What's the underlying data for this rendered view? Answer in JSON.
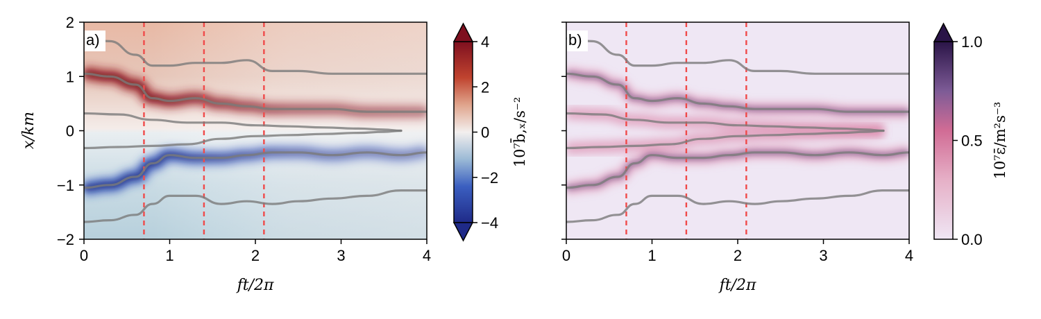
{
  "chart_data": [
    {
      "type": "heatmap",
      "panel_label": "a)",
      "xlabel": "ft/2π",
      "ylabel": "x/km",
      "xlim": [
        0,
        4
      ],
      "ylim": [
        -2,
        2
      ],
      "x_ticks": [
        "0",
        "1",
        "2",
        "3",
        "4"
      ],
      "y_ticks": [
        "−2",
        "−1",
        "0",
        "1",
        "2"
      ],
      "colorbar": {
        "label": "10⁷b̄,ₓ/s⁻²",
        "range": [
          -4,
          4
        ],
        "ticks": [
          "−4",
          "−2",
          "0",
          "2",
          "4"
        ],
        "colormap": "diverging blue-white-red",
        "colors": {
          "low": "#1f2a88",
          "mid": "#f3efee",
          "high": "#7e0f1f"
        },
        "extend": "both"
      },
      "vertical_lines": [
        0.7,
        1.4,
        2.1
      ],
      "contours": [
        {
          "x": [
            0,
            0.3,
            0.6,
            0.8,
            1.0,
            1.3,
            1.6,
            1.9,
            2.2,
            2.5,
            2.9,
            3.3,
            3.7,
            4.0
          ],
          "y": [
            1.7,
            1.65,
            1.4,
            1.2,
            1.2,
            1.25,
            1.25,
            1.3,
            1.1,
            1.1,
            1.05,
            1.05,
            1.05,
            1.05
          ]
        },
        {
          "x": [
            0,
            0.3,
            0.6,
            0.8,
            1.0,
            1.3,
            1.6,
            1.9,
            2.2,
            2.5,
            2.9,
            3.3,
            3.7,
            4.0
          ],
          "y": [
            1.05,
            1.0,
            0.85,
            0.6,
            0.55,
            0.6,
            0.5,
            0.45,
            0.4,
            0.4,
            0.4,
            0.35,
            0.35,
            0.35
          ]
        },
        {
          "x": [
            0,
            0.4,
            0.8,
            1.2,
            1.6,
            2.0,
            2.4,
            2.8,
            3.2,
            3.5,
            3.7
          ],
          "y": [
            0.32,
            0.3,
            0.2,
            0.15,
            0.15,
            0.1,
            0.08,
            0.06,
            0.04,
            0.02,
            0.0
          ]
        },
        {
          "x": [
            0,
            0.4,
            0.8,
            1.2,
            1.6,
            2.0,
            2.4,
            2.8,
            3.2,
            3.5,
            3.7
          ],
          "y": [
            -0.32,
            -0.3,
            -0.28,
            -0.25,
            -0.15,
            -0.1,
            -0.08,
            -0.06,
            -0.04,
            -0.02,
            0.0
          ]
        },
        {
          "x": [
            0,
            0.3,
            0.6,
            0.8,
            1.0,
            1.3,
            1.6,
            1.9,
            2.2,
            2.5,
            2.9,
            3.3,
            3.7,
            4.0
          ],
          "y": [
            -1.05,
            -1.0,
            -0.85,
            -0.6,
            -0.45,
            -0.5,
            -0.5,
            -0.45,
            -0.4,
            -0.4,
            -0.45,
            -0.4,
            -0.45,
            -0.4
          ]
        },
        {
          "x": [
            0,
            0.3,
            0.6,
            0.8,
            1.0,
            1.3,
            1.6,
            1.9,
            2.2,
            2.5,
            2.9,
            3.3,
            3.7,
            4.0
          ],
          "y": [
            -1.68,
            -1.65,
            -1.55,
            -1.35,
            -1.2,
            -1.2,
            -1.35,
            -1.3,
            -1.35,
            -1.3,
            -1.25,
            -1.2,
            -1.1,
            -1.1
          ]
        }
      ]
    },
    {
      "type": "heatmap",
      "panel_label": "b)",
      "xlabel": "ft/2π",
      "ylabel": "",
      "xlim": [
        0,
        4
      ],
      "ylim": [
        -2,
        2
      ],
      "x_ticks": [
        "0",
        "1",
        "2",
        "3",
        "4"
      ],
      "y_ticks": [],
      "colorbar": {
        "label": "10⁷ε̄/m²s⁻³",
        "range": [
          0,
          1
        ],
        "ticks": [
          "0.0",
          "0.5",
          "1.0"
        ],
        "colormap": "sequential lavender-pink-purple",
        "colors": {
          "low": "#efe6f4",
          "mid": "#d16c95",
          "high": "#2a1447"
        },
        "extend": "max"
      },
      "vertical_lines": [
        0.7,
        1.4,
        2.1
      ],
      "contours": "same as panel a"
    }
  ]
}
